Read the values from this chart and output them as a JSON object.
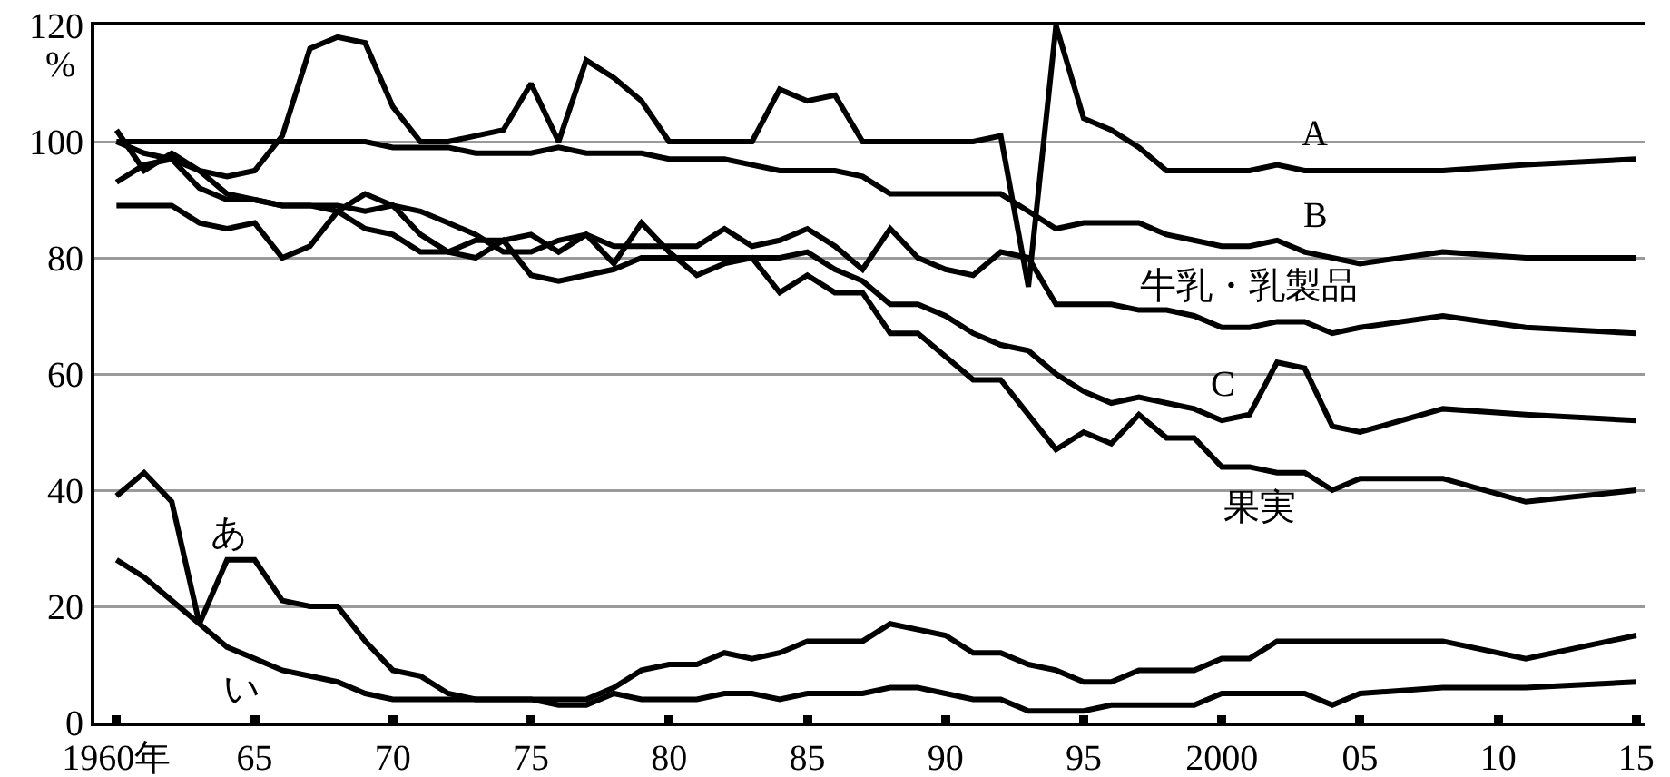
{
  "chart_data": {
    "type": "line",
    "ylabel": "%",
    "x": [
      1960,
      1961,
      1962,
      1963,
      1964,
      1965,
      1966,
      1967,
      1968,
      1969,
      1970,
      1971,
      1972,
      1973,
      1974,
      1975,
      1976,
      1977,
      1978,
      1979,
      1980,
      1981,
      1982,
      1983,
      1984,
      1985,
      1986,
      1987,
      1988,
      1989,
      1990,
      1991,
      1992,
      1993,
      1994,
      1995,
      1996,
      1997,
      1998,
      1999,
      2000,
      2001,
      2002,
      2003,
      2004,
      2005,
      2008,
      2011,
      2015
    ],
    "series": [
      {
        "name": "A",
        "color": "#000000",
        "values": [
          102,
          95,
          98,
          95,
          94,
          95,
          101,
          116,
          118,
          117,
          106,
          100,
          100,
          101,
          102,
          110,
          100,
          114,
          111,
          107,
          100,
          100,
          100,
          100,
          109,
          107,
          108,
          100,
          100,
          100,
          100,
          100,
          101,
          75,
          120,
          104,
          102,
          99,
          95,
          95,
          95,
          95,
          96,
          95,
          95,
          95,
          95,
          96,
          97
        ]
      },
      {
        "name": "B",
        "color": "#000000",
        "values": [
          100,
          100,
          100,
          100,
          100,
          100,
          100,
          100,
          100,
          100,
          99,
          99,
          99,
          98,
          98,
          98,
          99,
          98,
          98,
          98,
          97,
          97,
          97,
          96,
          95,
          95,
          95,
          94,
          91,
          91,
          91,
          91,
          91,
          88,
          85,
          86,
          86,
          86,
          84,
          83,
          82,
          82,
          83,
          81,
          80,
          79,
          81,
          80,
          80
        ]
      },
      {
        "name": "牛乳・乳製品",
        "color": "#000000",
        "values": [
          89,
          89,
          89,
          86,
          85,
          86,
          80,
          82,
          88,
          91,
          89,
          88,
          86,
          84,
          81,
          81,
          83,
          84,
          82,
          82,
          82,
          82,
          85,
          82,
          83,
          85,
          82,
          78,
          85,
          80,
          78,
          77,
          81,
          80,
          72,
          72,
          72,
          71,
          71,
          70,
          68,
          68,
          69,
          69,
          67,
          68,
          70,
          68,
          67
        ]
      },
      {
        "name": "C",
        "color": "#000000",
        "values": [
          93,
          96,
          97,
          95,
          91,
          90,
          89,
          89,
          89,
          88,
          89,
          84,
          81,
          80,
          83,
          77,
          76,
          77,
          78,
          80,
          80,
          80,
          80,
          80,
          80,
          81,
          78,
          76,
          72,
          72,
          70,
          67,
          65,
          64,
          60,
          57,
          55,
          56,
          55,
          54,
          52,
          53,
          62,
          61,
          51,
          50,
          54,
          53,
          52
        ]
      },
      {
        "name": "果実",
        "color": "#000000",
        "values": [
          100,
          98,
          97,
          92,
          90,
          90,
          89,
          89,
          88,
          85,
          84,
          81,
          81,
          83,
          83,
          84,
          81,
          84,
          79,
          86,
          81,
          77,
          79,
          80,
          74,
          77,
          74,
          74,
          67,
          67,
          63,
          59,
          59,
          53,
          47,
          50,
          48,
          53,
          49,
          49,
          44,
          44,
          43,
          43,
          40,
          42,
          42,
          38,
          40
        ]
      },
      {
        "name": "あ",
        "color": "#000000",
        "values": [
          39,
          43,
          38,
          17,
          28,
          28,
          21,
          20,
          20,
          14,
          9,
          8,
          5,
          4,
          4,
          4,
          4,
          4,
          6,
          9,
          10,
          10,
          12,
          11,
          12,
          14,
          14,
          14,
          17,
          16,
          15,
          12,
          12,
          10,
          9,
          7,
          7,
          9,
          9,
          9,
          11,
          11,
          14,
          14,
          14,
          14,
          14,
          11,
          15
        ]
      },
      {
        "name": "い",
        "color": "#000000",
        "values": [
          28,
          25,
          21,
          17,
          13,
          11,
          9,
          8,
          7,
          5,
          4,
          4,
          4,
          4,
          4,
          4,
          3,
          3,
          5,
          4,
          4,
          4,
          5,
          5,
          4,
          5,
          5,
          5,
          6,
          6,
          5,
          4,
          4,
          2,
          2,
          2,
          3,
          3,
          3,
          3,
          5,
          5,
          5,
          5,
          3,
          5,
          6,
          6,
          7
        ]
      }
    ],
    "xlim": [
      1959.2,
      2015.3
    ],
    "xticks": [
      {
        "value": 1960,
        "label": "1960年"
      },
      {
        "value": 1965,
        "label": "65"
      },
      {
        "value": 1970,
        "label": "70"
      },
      {
        "value": 1975,
        "label": "75"
      },
      {
        "value": 1980,
        "label": "80"
      },
      {
        "value": 1985,
        "label": "85"
      },
      {
        "value": 1990,
        "label": "90"
      },
      {
        "value": 1995,
        "label": "95"
      },
      2000,
      {
        "value": 2005,
        "label": "05"
      },
      {
        "value": 2010,
        "label": "10"
      },
      {
        "value": 2015,
        "label": "15"
      }
    ],
    "ylim": [
      0,
      120
    ],
    "yticks": [
      0,
      20,
      40,
      60,
      80,
      100,
      120
    ],
    "grid": "y",
    "legend": false,
    "marker": "none",
    "line_style": "solid"
  }
}
